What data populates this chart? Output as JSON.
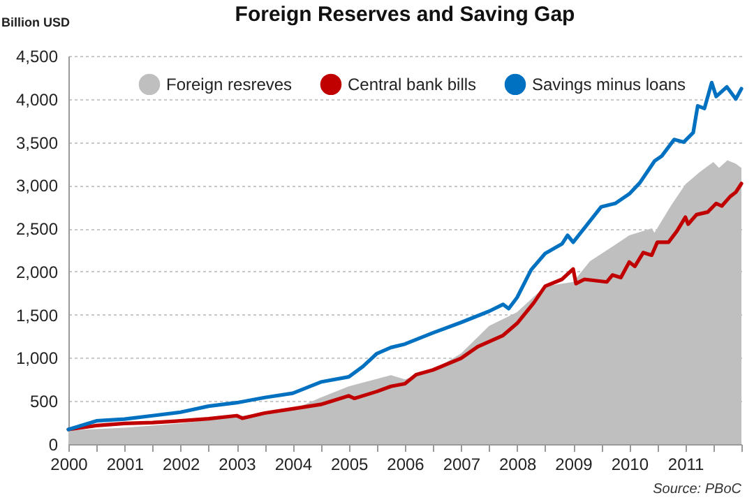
{
  "chart_data": {
    "type": "line",
    "title": "Foreign Reserves and Saving Gap",
    "ylabel": "Billion USD",
    "annotations": [
      "Source: PBoC"
    ],
    "xlim": [
      2000,
      2012
    ],
    "xticks": [
      2000,
      {
        "value": 2000.5,
        "label": null
      },
      2001,
      {
        "value": 2001.5,
        "label": null
      },
      2002,
      {
        "value": 2002.5,
        "label": null
      },
      2003,
      {
        "value": 2003.5,
        "label": null
      },
      2004,
      {
        "value": 2004.5,
        "label": null
      },
      2005,
      {
        "value": 2005.5,
        "label": null
      },
      2006,
      {
        "value": 2006.5,
        "label": null
      },
      2007,
      {
        "value": 2007.5,
        "label": null
      },
      2008,
      {
        "value": 2008.5,
        "label": null
      },
      2009,
      {
        "value": 2009.5,
        "label": null
      },
      2010,
      {
        "value": 2010.5,
        "label": null
      },
      2011,
      {
        "value": 2011.5,
        "label": null
      },
      {
        "value": 2012,
        "label": null
      }
    ],
    "ylim": [
      0,
      4500
    ],
    "yticks": [
      0,
      500,
      {
        "value": 1000,
        "label": "1,000"
      },
      {
        "value": 1500,
        "label": "1,500"
      },
      {
        "value": 2000,
        "label": "2,000"
      },
      {
        "value": 2500,
        "label": "2,500"
      },
      {
        "value": 3000,
        "label": "3,000"
      },
      {
        "value": 3500,
        "label": "3,500"
      },
      {
        "value": 4000,
        "label": "4,000"
      },
      {
        "value": 4500,
        "label": "4,500"
      }
    ],
    "grid": "y",
    "legend": "top",
    "line_style": "solid",
    "marker": "none",
    "series": [
      {
        "name": "Foreign resreves",
        "type": "area",
        "color": "#bfbfbf",
        "x": [
          2000,
          2001,
          2002,
          2003,
          2004,
          2004.5,
          2005,
          2005.75,
          2006,
          2006.5,
          2007,
          2007.5,
          2008,
          2008.5,
          2009,
          2009.3,
          2009.75,
          2010,
          2010.25,
          2010.4,
          2010.45,
          2010.75,
          2011,
          2011.25,
          2011.5,
          2011.6,
          2011.75,
          2011.9,
          2012
        ],
        "values": [
          160,
          190,
          240,
          320,
          400,
          540,
          670,
          800,
          750,
          860,
          1050,
          1370,
          1530,
          1830,
          1880,
          2120,
          2310,
          2420,
          2470,
          2500,
          2450,
          2770,
          3010,
          3150,
          3270,
          3200,
          3290,
          3250,
          3200
        ]
      },
      {
        "name": "Central bank bills",
        "type": "line",
        "color": "#c00000",
        "x": [
          2000,
          2000.5,
          2001,
          2001.5,
          2002,
          2002.5,
          2003,
          2003.1,
          2003.5,
          2004,
          2004.5,
          2005,
          2005.1,
          2005.5,
          2005.75,
          2006,
          2006.2,
          2006.5,
          2007,
          2007.3,
          2007.75,
          2008,
          2008.3,
          2008.5,
          2008.8,
          2009,
          2009.05,
          2009.2,
          2009.6,
          2009.7,
          2009.85,
          2010,
          2010.1,
          2010.25,
          2010.4,
          2010.5,
          2010.7,
          2010.85,
          2011,
          2011.05,
          2011.2,
          2011.4,
          2011.55,
          2011.65,
          2011.8,
          2011.9,
          2012
        ],
        "values": [
          170,
          215,
          240,
          250,
          270,
          295,
          330,
          300,
          360,
          410,
          460,
          560,
          530,
          610,
          670,
          700,
          806,
          860,
          995,
          1130,
          1260,
          1400,
          1640,
          1830,
          1910,
          2030,
          1860,
          1910,
          1880,
          1960,
          1930,
          2110,
          2060,
          2220,
          2190,
          2340,
          2340,
          2470,
          2630,
          2550,
          2660,
          2690,
          2790,
          2760,
          2870,
          2920,
          3020
        ]
      },
      {
        "name": "Savings minus loans",
        "type": "line",
        "color": "#0070c0",
        "x": [
          2000,
          2000.5,
          2001,
          2001.5,
          2002,
          2002.5,
          2003,
          2003.5,
          2004,
          2004.5,
          2005,
          2005.25,
          2005.5,
          2005.75,
          2006,
          2006.5,
          2007,
          2007.5,
          2007.75,
          2007.85,
          2008,
          2008.25,
          2008.5,
          2008.8,
          2008.9,
          2009,
          2009.5,
          2009.75,
          2010,
          2010.19,
          2010.45,
          2010.58,
          2010.8,
          2010.97,
          2011.14,
          2011.22,
          2011.34,
          2011.47,
          2011.55,
          2011.74,
          2011.9,
          2012
        ],
        "values": [
          170,
          270,
          290,
          330,
          370,
          440,
          480,
          540,
          590,
          720,
          780,
          900,
          1050,
          1120,
          1160,
          1290,
          1410,
          1540,
          1620,
          1570,
          1700,
          2020,
          2210,
          2320,
          2420,
          2340,
          2750,
          2790,
          2900,
          3030,
          3280,
          3340,
          3530,
          3500,
          3610,
          3920,
          3890,
          4190,
          4030,
          4140,
          4000,
          4120
        ]
      }
    ]
  }
}
